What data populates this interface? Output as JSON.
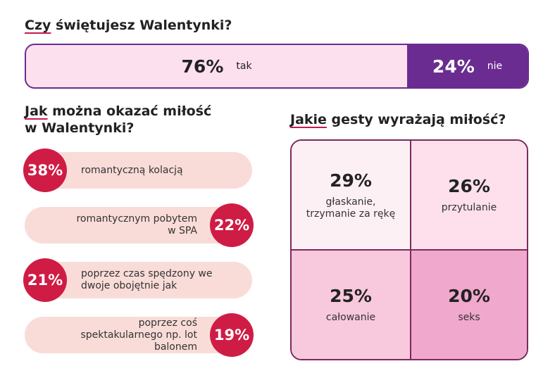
{
  "section1": {
    "title_underlined": "Czy",
    "title_rest": " świętujesz Walentynki?"
  },
  "section2": {
    "title_underlined": "Jak",
    "title_rest": " można okazać miłość",
    "title_line2": "w Walentynki?"
  },
  "section3": {
    "title_underlined": "Jakie",
    "title_rest": " gesty wyrażają miłość?"
  },
  "colors": {
    "purple": "#6a2c91",
    "light_pink": "#fde0ee",
    "red": "#cf1c44",
    "pill": "#f9dcd8",
    "grid_border": "#7a2a5e"
  },
  "chart_data": [
    {
      "type": "bar",
      "title": "Czy świętujesz Walentynki?",
      "categories": [
        "tak",
        "nie"
      ],
      "values": [
        76,
        24
      ],
      "labels": [
        "76%",
        "24%"
      ]
    },
    {
      "type": "bar",
      "title": "Jak można okazać miłość w Walentynki?",
      "categories": [
        "romantyczną kolacją",
        "romantycznym pobytem w SPA",
        "poprzez czas spędzony we dwoje obojętnie jak",
        "poprzez coś spektakularnego np. lot balonem"
      ],
      "values": [
        38,
        22,
        21,
        19
      ],
      "labels": [
        "38%",
        "22%",
        "21%",
        "19%"
      ],
      "label_lines": [
        [
          "romantyczną kolacją"
        ],
        [
          "romantycznym pobytem",
          "w SPA"
        ],
        [
          "poprzez czas spędzony we",
          "dwoje obojętnie jak"
        ],
        [
          "poprzez coś",
          "spektakularnego np. lot",
          "balonem"
        ]
      ]
    },
    {
      "type": "heatmap",
      "title": "Jakie gesty wyrażają miłość?",
      "categories": [
        "głaskanie, trzymanie za rękę",
        "przytulanie",
        "całowanie",
        "seks"
      ],
      "values": [
        29,
        26,
        25,
        20
      ],
      "labels": [
        "29%",
        "26%",
        "25%",
        "20%"
      ],
      "label_lines": [
        [
          "głaskanie,",
          "trzymanie za rękę"
        ],
        [
          "przytulanie"
        ],
        [
          "całowanie"
        ],
        [
          "seks"
        ]
      ],
      "colors": [
        "#fdf0f4",
        "#fde0ec",
        "#f8c8dc",
        "#f0a8cc"
      ]
    }
  ]
}
